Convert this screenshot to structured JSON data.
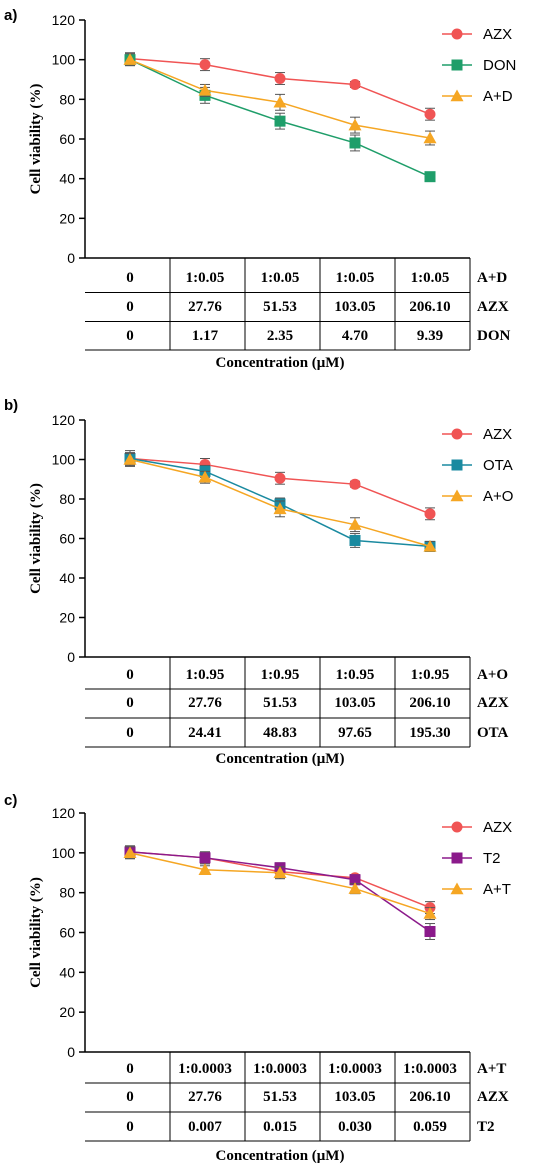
{
  "chart_data": [
    {
      "type": "line",
      "panel_label": "a)",
      "ylabel": "Cell viability (%)",
      "xlabel": "Concentration (μM)",
      "ylim": [
        0,
        120
      ],
      "yticks": [
        "0",
        "20",
        "40",
        "60",
        "80",
        "100",
        "120"
      ],
      "legend_position": "top-right",
      "table": {
        "rows": [
          {
            "name": "A+D",
            "cells": [
              "0",
              "1:0.05",
              "1:0.05",
              "1:0.05",
              "1:0.05"
            ]
          },
          {
            "name": "AZX",
            "cells": [
              "0",
              "27.76",
              "51.53",
              "103.05",
              "206.10"
            ]
          },
          {
            "name": "DON",
            "cells": [
              "0",
              "1.17",
              "2.35",
              "4.70",
              "9.39"
            ]
          }
        ]
      },
      "series": [
        {
          "name": "AZX",
          "color": "#f05454",
          "marker": "circle",
          "values": [
            100.5,
            97.5,
            90.5,
            87.5,
            72.5
          ],
          "errors": [
            3,
            3,
            3,
            1.5,
            3
          ]
        },
        {
          "name": "DON",
          "color": "#1f9e6a",
          "marker": "square",
          "values": [
            100,
            82,
            69,
            58,
            41
          ],
          "errors": [
            3,
            4,
            4,
            4,
            2
          ]
        },
        {
          "name": "A+D",
          "color": "#f5a623",
          "marker": "triangle",
          "values": [
            100,
            84.5,
            78.5,
            67,
            60.5
          ],
          "errors": [
            3,
            3,
            4,
            4,
            3.5
          ]
        }
      ]
    },
    {
      "type": "line",
      "panel_label": "b)",
      "ylabel": "Cell viability (%)",
      "xlabel": "Concentration (μM)",
      "ylim": [
        0,
        120
      ],
      "yticks": [
        "0",
        "20",
        "40",
        "60",
        "80",
        "100",
        "120"
      ],
      "legend_position": "top-right",
      "table": {
        "rows": [
          {
            "name": "A+O",
            "cells": [
              "0",
              "1:0.95",
              "1:0.95",
              "1:0.95",
              "1:0.95"
            ]
          },
          {
            "name": "AZX",
            "cells": [
              "0",
              "27.76",
              "51.53",
              "103.05",
              "206.10"
            ]
          },
          {
            "name": "OTA",
            "cells": [
              "0",
              "24.41",
              "48.83",
              "97.65",
              "195.30"
            ]
          }
        ]
      },
      "series": [
        {
          "name": "AZX",
          "color": "#f05454",
          "marker": "circle",
          "values": [
            100.5,
            97.5,
            90.5,
            87.5,
            72.5
          ],
          "errors": [
            3,
            3,
            3,
            1.5,
            3
          ]
        },
        {
          "name": "OTA",
          "color": "#1a8aa0",
          "marker": "square",
          "values": [
            100.5,
            94,
            77.5,
            59,
            56
          ],
          "errors": [
            4,
            3,
            3,
            3.5,
            2.5
          ]
        },
        {
          "name": "A+O",
          "color": "#f5a623",
          "marker": "triangle",
          "values": [
            100,
            91,
            75,
            67,
            56
          ],
          "errors": [
            3,
            3,
            4,
            3.5,
            2.5
          ]
        }
      ]
    },
    {
      "type": "line",
      "panel_label": "c)",
      "ylabel": "Cell viability (%)",
      "xlabel": "Concentration (μM)",
      "ylim": [
        0,
        120
      ],
      "yticks": [
        "0",
        "20",
        "40",
        "60",
        "80",
        "100",
        "120"
      ],
      "legend_position": "top-right",
      "table": {
        "rows": [
          {
            "name": "A+T",
            "cells": [
              "0",
              "1:0.0003",
              "1:0.0003",
              "1:0.0003",
              "1:0.0003"
            ]
          },
          {
            "name": "AZX",
            "cells": [
              "0",
              "27.76",
              "51.53",
              "103.05",
              "206.10"
            ]
          },
          {
            "name": "T2",
            "cells": [
              "0",
              "0.007",
              "0.015",
              "0.030",
              "0.059"
            ]
          }
        ]
      },
      "series": [
        {
          "name": "AZX",
          "color": "#f05454",
          "marker": "circle",
          "values": [
            100.5,
            97.5,
            90.5,
            87.5,
            72.5
          ],
          "errors": [
            3,
            3,
            3,
            1.5,
            3
          ]
        },
        {
          "name": "T2",
          "color": "#8b1a8b",
          "marker": "square",
          "values": [
            100.5,
            97.5,
            92.5,
            86.5,
            60.5
          ],
          "errors": [
            3,
            3,
            2.5,
            2.5,
            4
          ]
        },
        {
          "name": "A+T",
          "color": "#f5a623",
          "marker": "triangle",
          "values": [
            100,
            91.5,
            90,
            82,
            69.5
          ],
          "errors": [
            3,
            2,
            3,
            2.5,
            3
          ]
        }
      ]
    }
  ]
}
